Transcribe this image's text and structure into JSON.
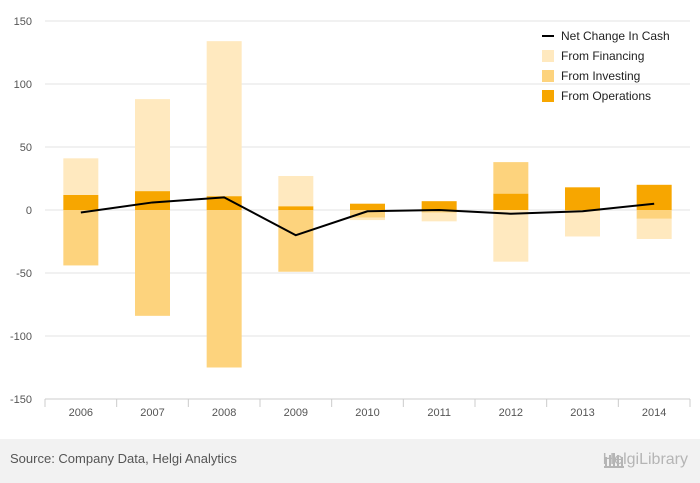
{
  "chart_data": {
    "type": "bar",
    "categories": [
      "2006",
      "2007",
      "2008",
      "2009",
      "2010",
      "2011",
      "2012",
      "2013",
      "2014"
    ],
    "ylim": [
      -150,
      150
    ],
    "yticks": [
      150,
      100,
      50,
      0,
      -50,
      -100,
      -150
    ],
    "grid": true,
    "legend_position": "top-right",
    "series": [
      {
        "name": "From Financing",
        "kind": "stacked-bar",
        "color": "#ffe9bf",
        "values": [
          29,
          73,
          123,
          24,
          -2,
          -7,
          -41,
          -20,
          -16
        ]
      },
      {
        "name": "From Investing",
        "kind": "stacked-bar",
        "color": "#fdd37d",
        "values": [
          -44,
          -84,
          -125,
          -49,
          -6,
          -2,
          25,
          -1,
          -7
        ]
      },
      {
        "name": "From Operations",
        "kind": "stacked-bar",
        "color": "#f7a600",
        "values": [
          12,
          15,
          11,
          3,
          5,
          7,
          13,
          18,
          20
        ]
      },
      {
        "name": "Net Change In Cash",
        "kind": "line",
        "color": "#000000",
        "values": [
          -2,
          6,
          10,
          -20,
          -1,
          0,
          -3,
          -1,
          5
        ]
      }
    ]
  },
  "legend": [
    {
      "label": "Net Change In Cash",
      "kind": "line",
      "color": "#000000"
    },
    {
      "label": "From Financing",
      "kind": "box",
      "color": "#ffe9bf"
    },
    {
      "label": "From Investing",
      "kind": "box",
      "color": "#fdd37d"
    },
    {
      "label": "From Operations",
      "kind": "box",
      "color": "#f7a600"
    }
  ],
  "footer": {
    "source": "Source: Company Data, Helgi Analytics",
    "brand": "HelgiLibrary"
  }
}
